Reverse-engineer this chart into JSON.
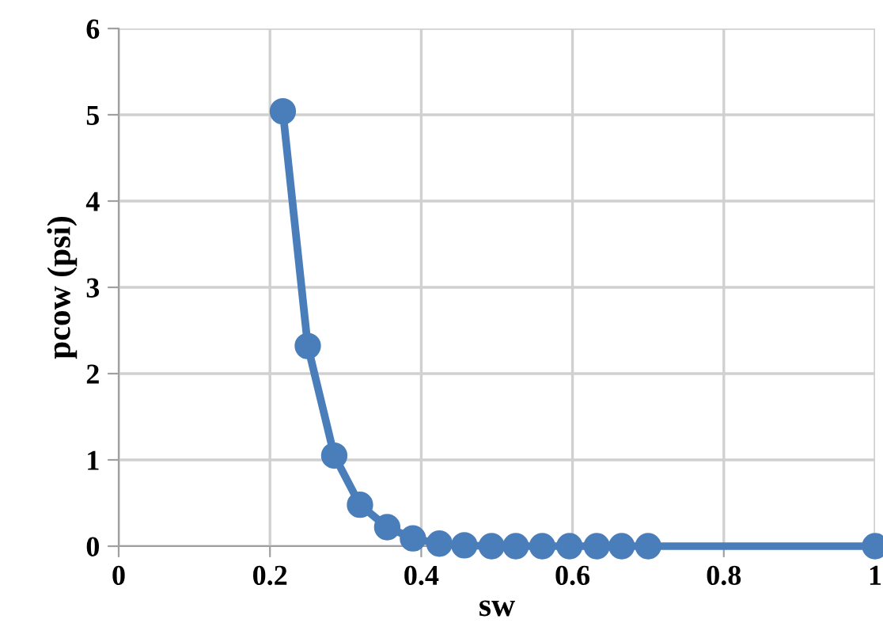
{
  "chart_data": {
    "type": "line",
    "xlabel": "sw",
    "ylabel": "pcow (psi)",
    "x": [
      0.217,
      0.25,
      0.285,
      0.319,
      0.355,
      0.389,
      0.424,
      0.457,
      0.493,
      0.525,
      0.56,
      0.596,
      0.632,
      0.665,
      0.7,
      1.0
    ],
    "series": [
      {
        "color": "#4a7ebb",
        "values": [
          5.04,
          2.32,
          1.05,
          0.48,
          0.22,
          0.09,
          0.03,
          0.01,
          0.0,
          0.0,
          0.0,
          0.0,
          0.0,
          0.0,
          0.0,
          0.0
        ]
      }
    ],
    "xlim": [
      0,
      1
    ],
    "ylim": [
      0,
      6
    ],
    "xticks": [
      0,
      0.2,
      0.4,
      0.6,
      0.8,
      1
    ],
    "yticks": [
      0,
      1,
      2,
      3,
      4,
      5,
      6
    ],
    "grid": true,
    "marker": "circle",
    "line_style": "solid"
  }
}
